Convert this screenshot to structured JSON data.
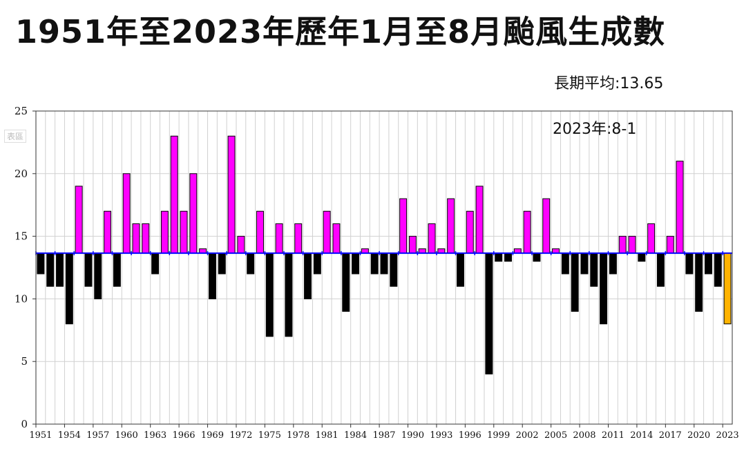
{
  "title": "1951年至2023年歷年1月至8月颱風生成數",
  "average_label": "長期平均:13.65",
  "watermark": "表區",
  "chart_data": {
    "type": "bar",
    "title": "1951年至2023年歷年1月至8月颱風生成數",
    "xlabel": "",
    "ylabel": "",
    "ylim": [
      0,
      25
    ],
    "yticks": [
      0,
      5,
      10,
      15,
      20,
      25
    ],
    "baseline": 13.65,
    "grid": true,
    "annotation": "2023年:8-1",
    "xtick_labels": [
      "1951",
      "1954",
      "1957",
      "1960",
      "1963",
      "1966",
      "1969",
      "1972",
      "1975",
      "1978",
      "1981",
      "1984",
      "1987",
      "1990",
      "1993",
      "1996",
      "1999",
      "2002",
      "2005",
      "2008",
      "2011",
      "2014",
      "2017",
      "2020",
      "2023"
    ],
    "categories": [
      "1951",
      "1952",
      "1953",
      "1954",
      "1955",
      "1956",
      "1957",
      "1958",
      "1959",
      "1960",
      "1961",
      "1962",
      "1963",
      "1964",
      "1965",
      "1966",
      "1967",
      "1968",
      "1969",
      "1970",
      "1971",
      "1972",
      "1973",
      "1974",
      "1975",
      "1976",
      "1977",
      "1978",
      "1979",
      "1980",
      "1981",
      "1982",
      "1983",
      "1984",
      "1985",
      "1986",
      "1987",
      "1988",
      "1989",
      "1990",
      "1991",
      "1992",
      "1993",
      "1994",
      "1995",
      "1996",
      "1997",
      "1998",
      "1999",
      "2000",
      "2001",
      "2002",
      "2003",
      "2004",
      "2005",
      "2006",
      "2007",
      "2008",
      "2009",
      "2010",
      "2011",
      "2012",
      "2013",
      "2014",
      "2015",
      "2016",
      "2017",
      "2018",
      "2019",
      "2020",
      "2021",
      "2022",
      "2023"
    ],
    "values": [
      12,
      11,
      11,
      8,
      19,
      11,
      10,
      17,
      11,
      20,
      16,
      16,
      12,
      17,
      23,
      17,
      20,
      14,
      10,
      12,
      23,
      15,
      12,
      17,
      7,
      16,
      7,
      16,
      10,
      12,
      17,
      16,
      9,
      12,
      14,
      12,
      12,
      11,
      18,
      15,
      14,
      16,
      14,
      18,
      11,
      17,
      19,
      4,
      13,
      13,
      14,
      17,
      13,
      18,
      14,
      12,
      9,
      12,
      11,
      8,
      12,
      15,
      15,
      13,
      16,
      11,
      15,
      21,
      12,
      9,
      12,
      11,
      8
    ],
    "colors": {
      "above": "#ff00ff",
      "below": "#000000",
      "current": "#ffb300",
      "baseline": "#0000ff"
    }
  }
}
